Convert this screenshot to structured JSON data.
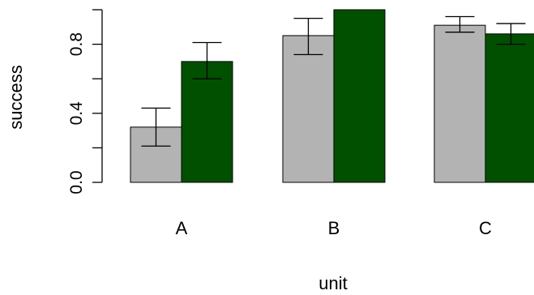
{
  "chart_data": {
    "type": "bar",
    "xlabel": "unit",
    "ylabel": "success",
    "categories": [
      "A",
      "B",
      "C"
    ],
    "ylim": [
      0,
      1.0
    ],
    "yticks": [
      0.0,
      0.4,
      0.8
    ],
    "ytick_labels": [
      "0.0",
      "0.4",
      "0.8"
    ],
    "grid": false,
    "series": [
      {
        "color": "#b3b3b3",
        "values": [
          0.32,
          0.85,
          0.91
        ],
        "error_low": [
          0.21,
          0.74,
          0.87
        ],
        "error_high": [
          0.43,
          0.95,
          0.96
        ]
      },
      {
        "color": "#005000",
        "values": [
          0.7,
          1.0,
          0.86
        ],
        "error_low": [
          0.6,
          null,
          0.8
        ],
        "error_high": [
          0.81,
          null,
          0.92
        ]
      }
    ]
  }
}
